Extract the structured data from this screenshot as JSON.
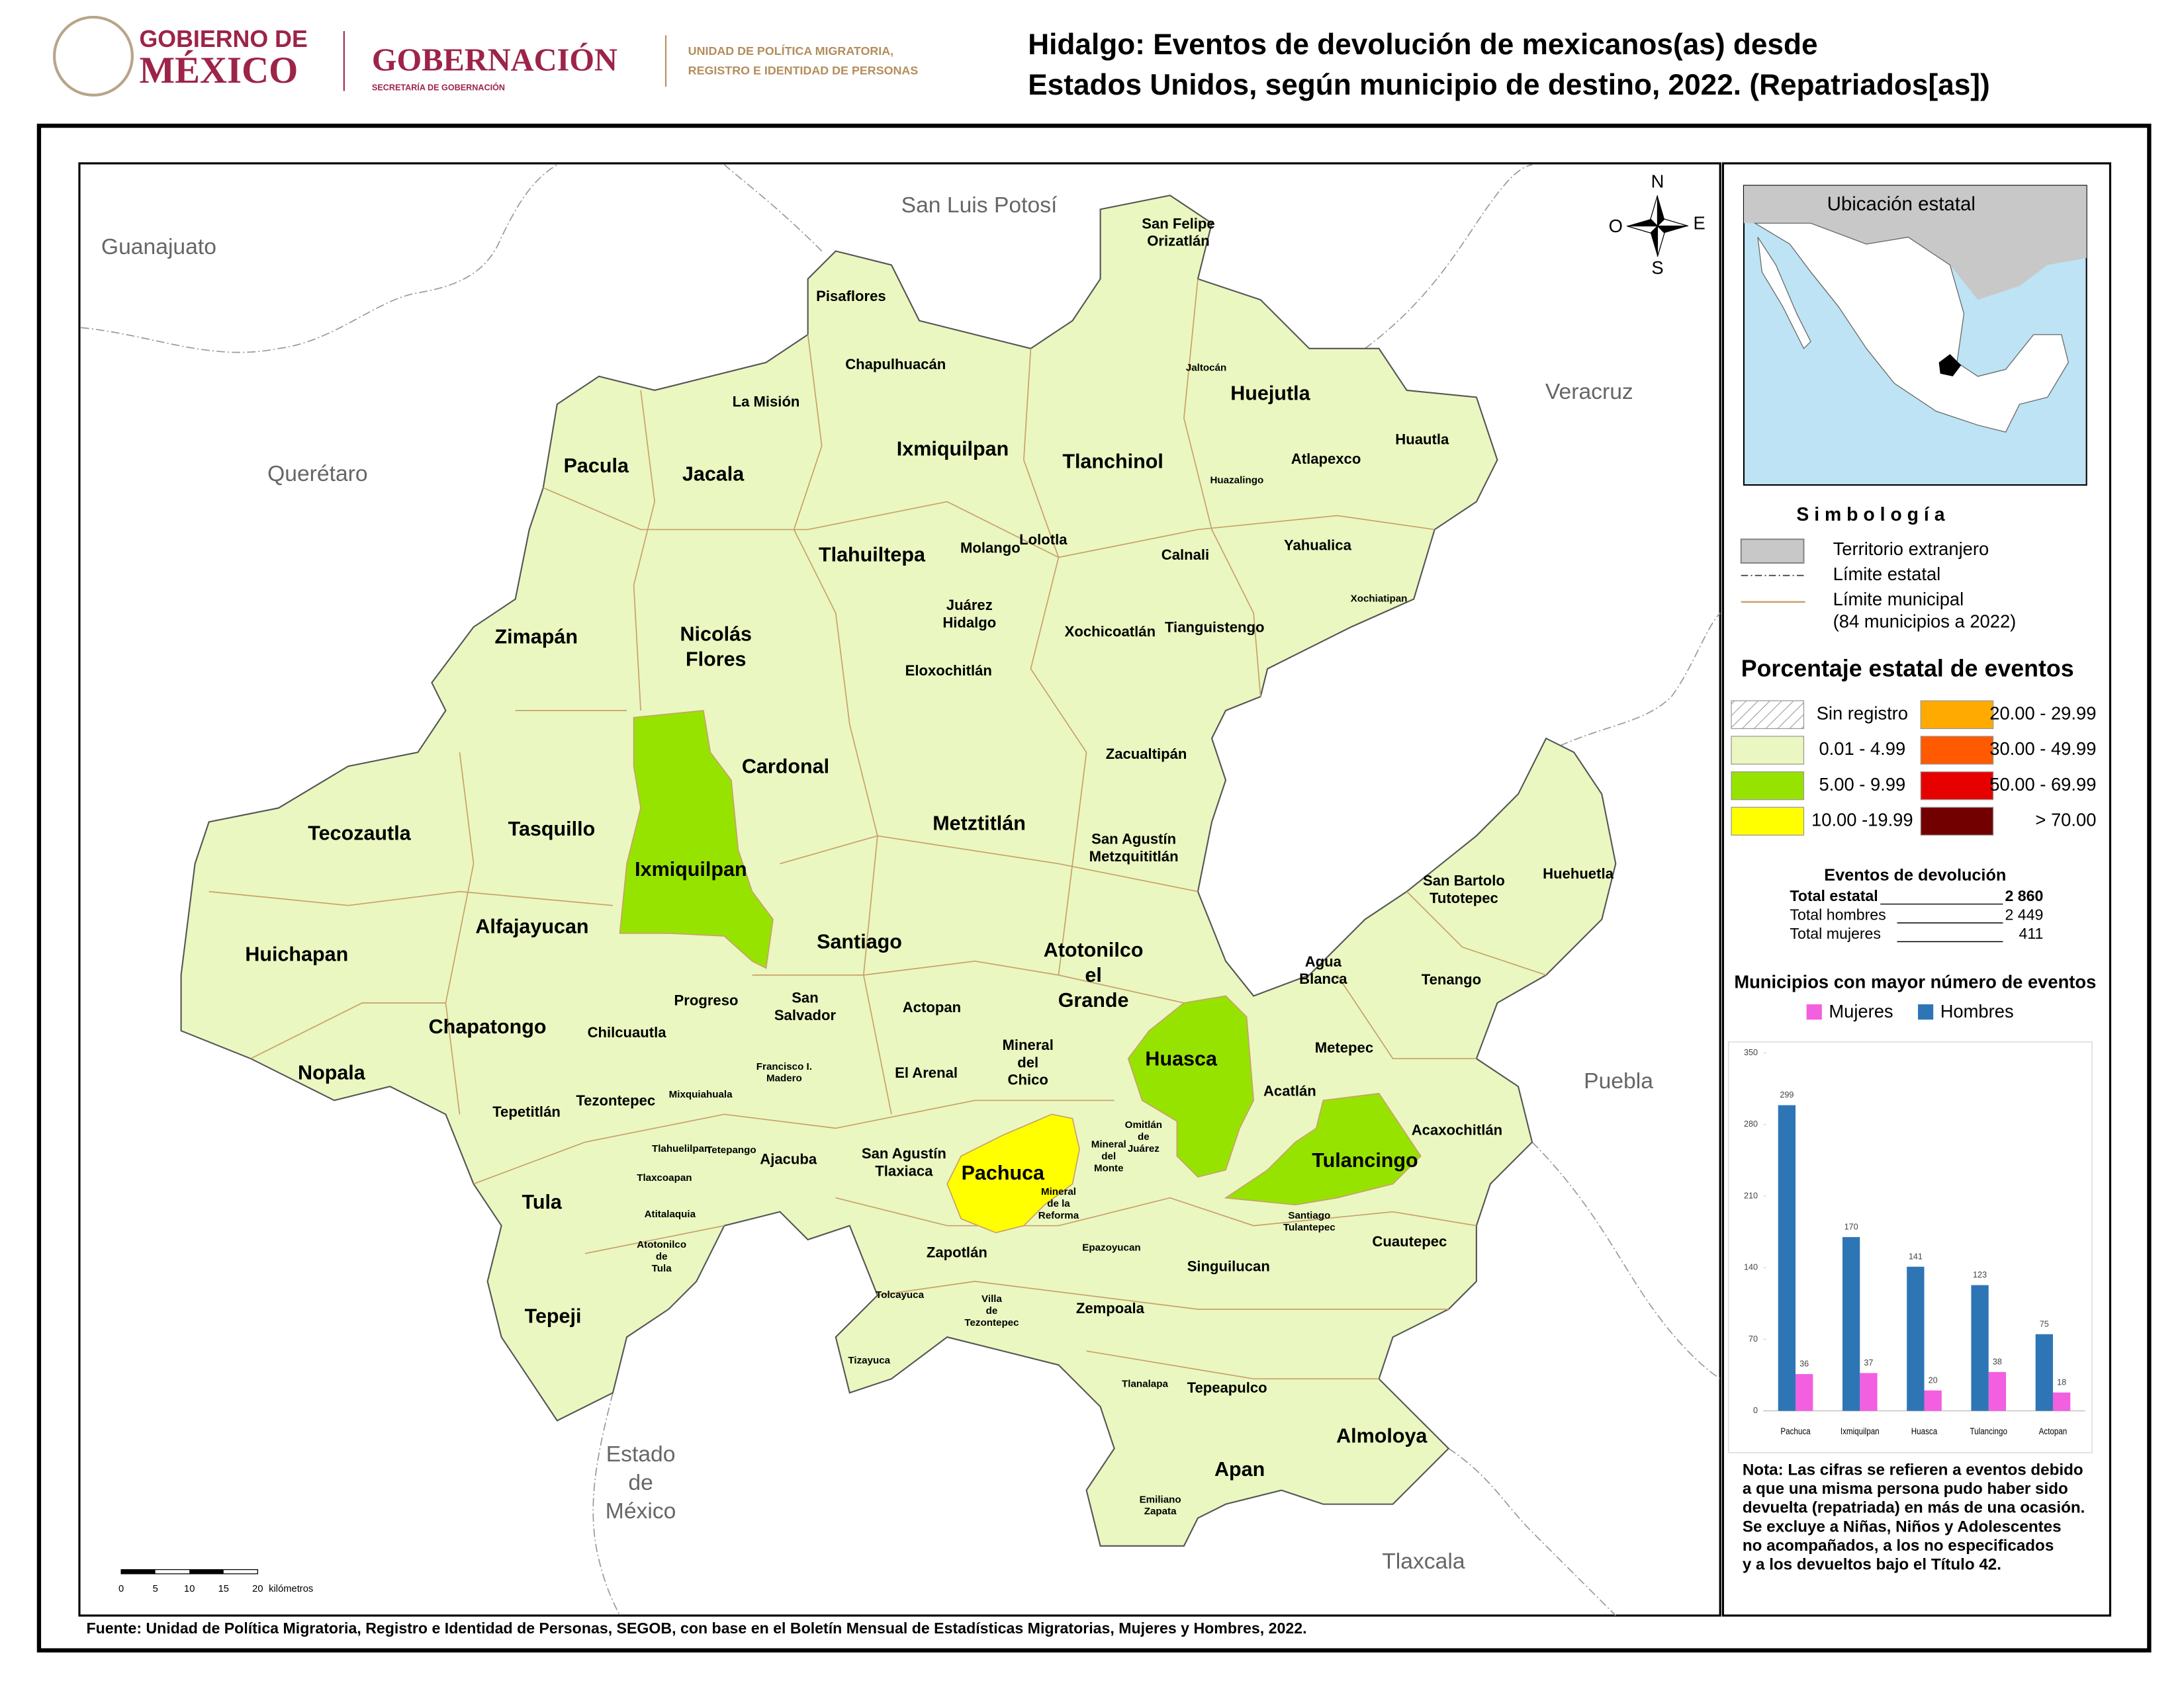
{
  "header": {
    "logo1": [
      "GOBIERNO DE",
      "MÉXICO"
    ],
    "logo2": [
      "GOBERNACIÓN",
      "SECRETARÍA DE GOBERNACIÓN"
    ],
    "logo3": [
      "UNIDAD DE POLÍTICA MIGRATORIA,",
      "REGISTRO E IDENTIDAD DE PERSONAS"
    ],
    "title": [
      "Hidalgo: Eventos de devolución de mexicanos(as) desde",
      "Estados Unidos, según municipio de destino, 2022. (Repatriados[as])"
    ]
  },
  "map": {
    "states": [
      [
        "Guanajuato"
      ],
      [
        "San Luis Potosí"
      ],
      [
        "Querétaro"
      ],
      [
        "Veracruz"
      ],
      [
        "Puebla"
      ],
      [
        "Estado",
        "de",
        "México"
      ],
      [
        "Tlaxcala"
      ]
    ],
    "municipios": [
      [
        "Pisaflores"
      ],
      [
        "San Felipe",
        "Orizatlán"
      ],
      [
        "Chapulhuacán"
      ],
      [
        "Jaltocán"
      ],
      [
        "La Misión"
      ],
      [
        "Huejutla"
      ],
      [
        "Huautla"
      ],
      [
        "Pacula"
      ],
      [
        "Jacala"
      ],
      [
        "Ixmiquilpan"
      ],
      [
        "Tlanchinol"
      ],
      [
        "Atlapexco"
      ],
      [
        "Huazalingo"
      ],
      [
        "Molango"
      ],
      [
        "Lolotla"
      ],
      [
        "Tlahuiltepa"
      ],
      [
        "Calnali"
      ],
      [
        "Yahualica"
      ],
      [
        "Xochiatipan"
      ],
      [
        "Juárez",
        "Hidalgo"
      ],
      [
        "Xochicoatlán"
      ],
      [
        "Tianguistengo"
      ],
      [
        "Zimapán"
      ],
      [
        "Nicolás",
        "Flores"
      ],
      [
        "Eloxochitlán"
      ],
      [
        "Zacualtipán"
      ],
      [
        "Cardonal"
      ],
      [
        "Tecozautla"
      ],
      [
        "Tasquillo"
      ],
      [
        "Metztitlán"
      ],
      [
        "San Agustín",
        "Metzquititlán"
      ],
      [
        "San Bartolo",
        "Tutotepec"
      ],
      [
        "Huehuetla"
      ],
      [
        "Ixmiquilpan"
      ],
      [
        "Alfajayucan"
      ],
      [
        "Santiago"
      ],
      [
        "Huichapan"
      ],
      [
        "Atotonilco",
        "el",
        "Grande"
      ],
      [
        "Agua",
        "Blanca"
      ],
      [
        "Tenango"
      ],
      [
        "Progreso"
      ],
      [
        "San",
        "Salvador"
      ],
      [
        "Actopan"
      ],
      [
        "Chapatongo"
      ],
      [
        "Chilcuautla"
      ],
      [
        "Mineral",
        "del",
        "Chico"
      ],
      [
        "Metepec"
      ],
      [
        "Huasca"
      ],
      [
        "Nopala"
      ],
      [
        "Francisco I.",
        "Madero"
      ],
      [
        "El Arenal"
      ],
      [
        "Acatlán"
      ],
      [
        "Tepetitlán"
      ],
      [
        "Tezontepec"
      ],
      [
        "Mixquiahuala"
      ],
      [
        "Omitlán",
        "de",
        "Juárez"
      ],
      [
        "Acaxochitlán"
      ],
      [
        "Tlahuelilpan"
      ],
      [
        "Tetepango"
      ],
      [
        "Mineral",
        "del",
        "Monte"
      ],
      [
        "Tulancingo"
      ],
      [
        "San Agustín",
        "Tlaxiaca"
      ],
      [
        "Ajacuba"
      ],
      [
        "Pachuca"
      ],
      [
        "Tlaxcoapan"
      ],
      [
        "Mineral",
        "de la",
        "Reforma"
      ],
      [
        "Tula"
      ],
      [
        "Santiago",
        "Tulantepec"
      ],
      [
        "Atitalaquia"
      ],
      [
        "Cuautepec"
      ],
      [
        "Atotonilco",
        "de",
        "Tula"
      ],
      [
        "Zapotlán"
      ],
      [
        "Epazoyucan"
      ],
      [
        "Singuilucan"
      ],
      [
        "Tolcayuca"
      ],
      [
        "Villa",
        "de",
        "Tezontepec"
      ],
      [
        "Zempoala"
      ],
      [
        "Tepeji"
      ],
      [
        "Tizayuca"
      ],
      [
        "Tlanalapa"
      ],
      [
        "Tepeapulco"
      ],
      [
        "Almoloya"
      ],
      [
        "Apan"
      ],
      [
        "Emiliano",
        "Zapata"
      ]
    ],
    "compass": {
      "n": "N",
      "s": "S",
      "e": "E",
      "o": "O"
    },
    "scale": {
      "ticks": [
        0,
        5,
        10,
        15,
        20
      ],
      "unit": "kilómetros"
    }
  },
  "inset": {
    "title": "Ubicación estatal"
  },
  "legend": {
    "title": "S i m b o l o g í a",
    "items": [
      "Territorio extranjero",
      "Límite estatal",
      "Límite municipal"
    ],
    "note": "(84 municipios a 2022)",
    "percent_title": "Porcentaje estatal de eventos",
    "classes": [
      {
        "label": "Sin registro",
        "color": "#ffffff",
        "hatch": true
      },
      {
        "label": "0.01  - 4.99",
        "color": "#eaf7c0"
      },
      {
        "label": "5.00  - 9.99",
        "color": "#97e300"
      },
      {
        "label": "10.00 -19.99",
        "color": "#ffff00"
      },
      {
        "label": "20.00 - 29.99",
        "color": "#ffaa00"
      },
      {
        "label": "30.00 - 49.99",
        "color": "#ff5a00"
      },
      {
        "label": "50.00 - 69.99",
        "color": "#e60000"
      },
      {
        "label": "> 70.00",
        "color": "#730000"
      }
    ]
  },
  "stats": {
    "title": "Eventos de devolución",
    "rows": [
      [
        "Total estatal",
        "2 860"
      ],
      [
        "Total hombres",
        "2 449"
      ],
      [
        "Total mujeres",
        "411"
      ]
    ]
  },
  "chart": {
    "type": "bar",
    "title": "Municipios con mayor número de eventos",
    "categories": [
      "Pachuca",
      "Ixmiquilpan",
      "Huasca",
      "Tulancingo",
      "Actopan"
    ],
    "series": [
      {
        "name": "Mujeres",
        "color": "#f25fe0",
        "values": [
          36,
          37,
          20,
          38,
          18
        ]
      },
      {
        "name": "Hombres",
        "color": "#2e75b6",
        "values": [
          299,
          170,
          141,
          123,
          75
        ]
      }
    ],
    "ylim": [
      0,
      350
    ],
    "yticks": [
      0,
      70,
      140,
      210,
      280,
      350
    ]
  },
  "note": [
    "Nota: Las cifras se refieren a eventos debido",
    "a que una misma persona pudo haber sido",
    "devuelta (repatriada) en más de una ocasión.",
    "Se excluye a Niñas, Niños y Adolescentes",
    "no acompañados, a los no especificados",
    "y a los devueltos bajo el Título 42."
  ],
  "source": "Fuente: Unidad de Política Migratoria, Registro e Identidad de Personas, SEGOB, con base en el Boletín Mensual de Estadísticas Migratorias, Mujeres y Hombres, 2022."
}
